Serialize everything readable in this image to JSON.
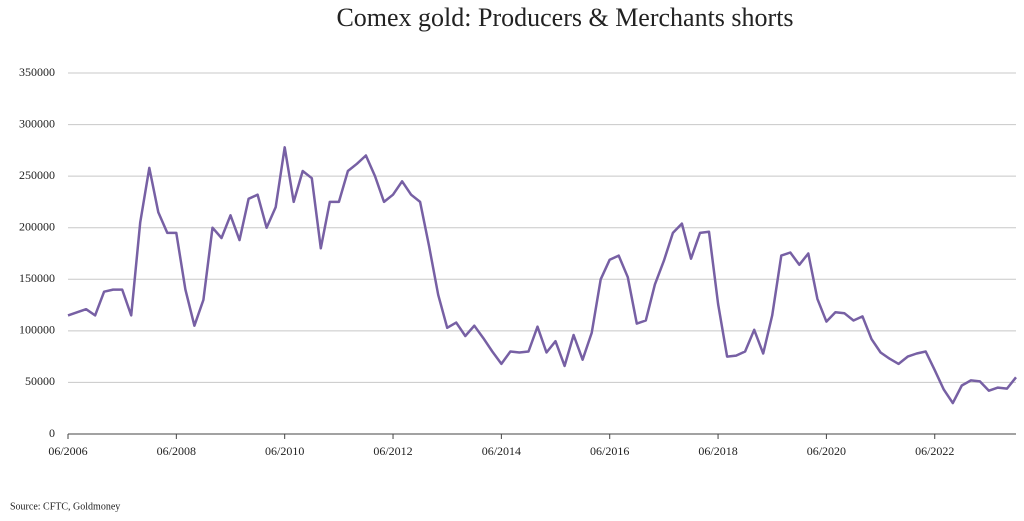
{
  "chart_data": {
    "type": "line",
    "title": "Comex gold: Producers & Merchants shorts",
    "source": "Source: CFTC, Goldmoney",
    "color": "#7760a4",
    "grid": true,
    "x": [
      "06/2006",
      "08/2006",
      "10/2006",
      "12/2006",
      "02/2007",
      "04/2007",
      "06/2007",
      "08/2007",
      "10/2007",
      "12/2007",
      "02/2008",
      "04/2008",
      "06/2008",
      "08/2008",
      "10/2008",
      "12/2008",
      "02/2009",
      "04/2009",
      "06/2009",
      "08/2009",
      "10/2009",
      "12/2009",
      "02/2010",
      "04/2010",
      "06/2010",
      "08/2010",
      "10/2010",
      "12/2010",
      "02/2011",
      "04/2011",
      "06/2011",
      "08/2011",
      "10/2011",
      "12/2011",
      "02/2012",
      "04/2012",
      "06/2012",
      "08/2012",
      "10/2012",
      "12/2012",
      "02/2013",
      "04/2013",
      "06/2013",
      "08/2013",
      "10/2013",
      "12/2013",
      "02/2014",
      "04/2014",
      "06/2014",
      "08/2014",
      "10/2014",
      "12/2014",
      "02/2015",
      "04/2015",
      "06/2015",
      "08/2015",
      "10/2015",
      "12/2015",
      "02/2016",
      "04/2016",
      "06/2016",
      "08/2016",
      "10/2016",
      "12/2016",
      "02/2017",
      "04/2017",
      "06/2017",
      "08/2017",
      "10/2017",
      "12/2017",
      "02/2018",
      "04/2018",
      "06/2018",
      "08/2018",
      "10/2018",
      "12/2018",
      "02/2019",
      "04/2019",
      "06/2019",
      "08/2019",
      "10/2019",
      "12/2019",
      "02/2020",
      "04/2020",
      "06/2020",
      "08/2020",
      "10/2020",
      "12/2020",
      "02/2021",
      "04/2021",
      "06/2021",
      "08/2021",
      "10/2021",
      "12/2021",
      "02/2022",
      "04/2022",
      "06/2022",
      "08/2022",
      "10/2022",
      "12/2022",
      "02/2023",
      "04/2023",
      "06/2023",
      "08/2023",
      "10/2023",
      "12/2023"
    ],
    "values": [
      115000,
      118000,
      121000,
      115000,
      138000,
      140000,
      140000,
      115000,
      205000,
      258000,
      215000,
      195000,
      195000,
      140000,
      105000,
      130000,
      200000,
      190000,
      212000,
      188000,
      228000,
      232000,
      200000,
      220000,
      278000,
      225000,
      255000,
      248000,
      180000,
      225000,
      225000,
      255000,
      262000,
      270000,
      250000,
      225000,
      232000,
      245000,
      232000,
      225000,
      182000,
      135000,
      103000,
      108000,
      95000,
      105000,
      93000,
      80000,
      68000,
      80000,
      79000,
      80000,
      104000,
      79000,
      90000,
      66000,
      96000,
      72000,
      98000,
      150000,
      169000,
      173000,
      152000,
      107000,
      110000,
      145000,
      168000,
      195000,
      204000,
      170000,
      195000,
      196000,
      126000,
      75000,
      76000,
      80000,
      101000,
      78000,
      115000,
      173000,
      176000,
      164000,
      175000,
      131000,
      109000,
      118000,
      117000,
      110000,
      114000,
      92000,
      79000,
      73000,
      68000,
      75000,
      78000,
      80000,
      62000,
      43000,
      30000,
      47000,
      52000,
      51000,
      42000,
      45000,
      44000,
      55000
    ],
    "xlim": [
      "06/2006",
      "12/2023"
    ],
    "xticks": [
      "06/2006",
      "06/2008",
      "06/2010",
      "06/2012",
      "06/2014",
      "06/2016",
      "06/2018",
      "06/2020",
      "06/2022"
    ],
    "ylim": [
      0,
      350000
    ],
    "yticks": [
      0,
      50000,
      100000,
      150000,
      200000,
      250000,
      300000,
      350000
    ]
  }
}
